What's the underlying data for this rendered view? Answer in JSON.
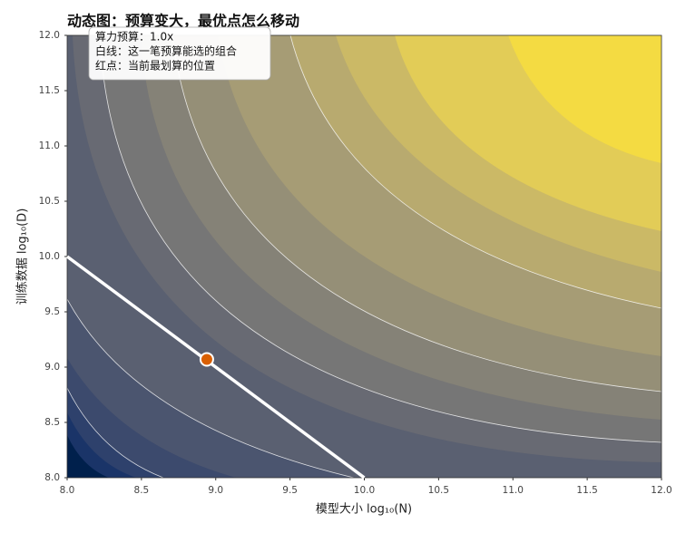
{
  "chart_data": {
    "type": "contour",
    "title": "动态图：预算变大，最优点怎么移动",
    "xlabel": "模型大小 log₁₀(N)",
    "ylabel": "训练数据 log₁₀(D)",
    "annotations": [
      "算力预算：1.0x",
      "白线：这一笔预算能选的组合",
      "红点：当前最划算的位置"
    ],
    "xlim": [
      8,
      12
    ],
    "ylim": [
      8,
      12
    ],
    "xticks": [
      {
        "value": 8,
        "label": "8.0"
      },
      8.5,
      {
        "value": 9,
        "label": "9.0"
      },
      9.5,
      {
        "value": 10,
        "label": "10.0"
      },
      10.5,
      {
        "value": 11,
        "label": "11.0"
      },
      11.5,
      {
        "value": 12,
        "label": "12.0"
      }
    ],
    "yticks": [
      {
        "value": 8,
        "label": "8.0"
      },
      8.5,
      {
        "value": 9,
        "label": "9.0"
      },
      9.5,
      {
        "value": 10,
        "label": "10.0"
      },
      10.5,
      {
        "value": 11,
        "label": "11.0"
      },
      11.5,
      {
        "value": 12,
        "label": "12.0"
      }
    ],
    "budget_line": {
      "x": [
        8,
        10
      ],
      "y": [
        10,
        8
      ],
      "color": "#ffffff"
    },
    "optimum": {
      "x": 8.94,
      "y": 9.07,
      "color": "#d95f02"
    }
  }
}
